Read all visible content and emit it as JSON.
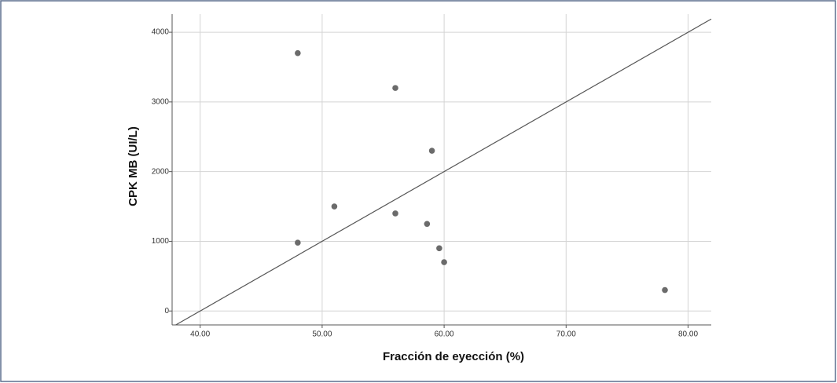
{
  "chart_data": {
    "type": "scatter",
    "xlabel": "Fracción de eyección (%)",
    "ylabel": "CPK MB (UI/L)",
    "x": [
      48,
      56,
      59,
      51,
      56,
      58.6,
      48,
      59.6,
      60,
      78.1
    ],
    "values": [
      3700,
      3200,
      2300,
      1500,
      1400,
      1250,
      980,
      900,
      700,
      300
    ],
    "color": "#6b6b6b",
    "fit_line": {
      "x": [
        38,
        81.9
      ],
      "y": [
        -200,
        4190
      ],
      "color": "#555555"
    },
    "xlim": [
      37.7,
      81.9
    ],
    "ylim": [
      -200,
      4260
    ],
    "xticks": [
      {
        "value": 40,
        "label": "40.00"
      },
      {
        "value": 50,
        "label": "50.00"
      },
      {
        "value": 60,
        "label": "60.00"
      },
      {
        "value": 70,
        "label": "70.00"
      },
      {
        "value": 80,
        "label": "80.00"
      }
    ],
    "yticks": [
      0,
      1000,
      2000,
      3000,
      4000
    ],
    "grid": true
  }
}
